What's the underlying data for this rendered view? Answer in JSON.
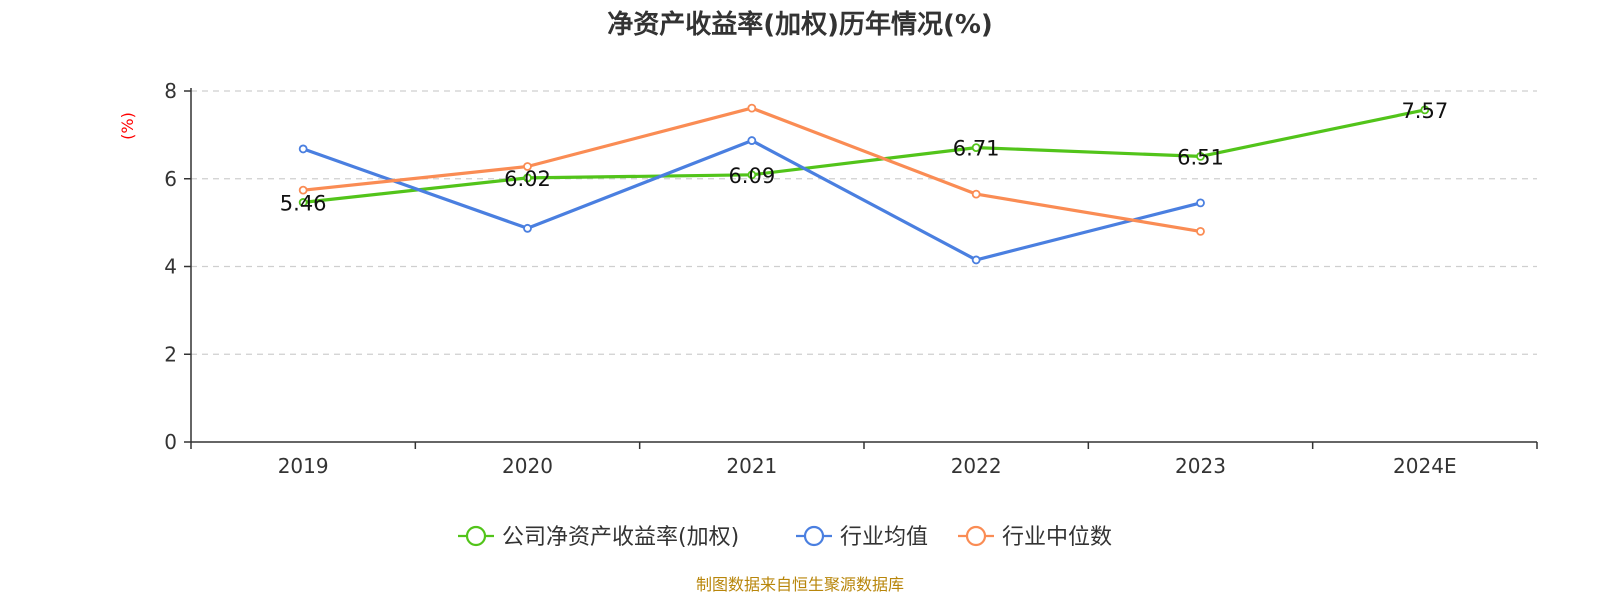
{
  "chart_data": {
    "type": "line",
    "title": "净资产收益率(加权)历年情况(%)",
    "ylabel": "(%)",
    "xlabel": "",
    "categories": [
      "2019",
      "2020",
      "2021",
      "2022",
      "2023",
      "2024E"
    ],
    "ylim": [
      0,
      8
    ],
    "yticks": [
      0,
      2,
      4,
      6,
      8
    ],
    "grid": true,
    "legend_position": "bottom",
    "series": [
      {
        "name": "公司净资产收益率(加权)",
        "color": "#52c41a",
        "values": [
          5.46,
          6.02,
          6.09,
          6.71,
          6.51,
          7.57
        ],
        "labels": [
          "5.46",
          "6.02",
          "6.09",
          "6.71",
          "6.51",
          "7.57"
        ]
      },
      {
        "name": "行业均值",
        "color": "#4a7fe0",
        "values": [
          6.68,
          4.87,
          6.87,
          4.15,
          5.45,
          null
        ]
      },
      {
        "name": "行业中位数",
        "color": "#fa8c54",
        "values": [
          5.74,
          6.28,
          7.61,
          5.65,
          4.8,
          null
        ]
      }
    ]
  },
  "footer": {
    "source": "制图数据来自恒生聚源数据库"
  }
}
